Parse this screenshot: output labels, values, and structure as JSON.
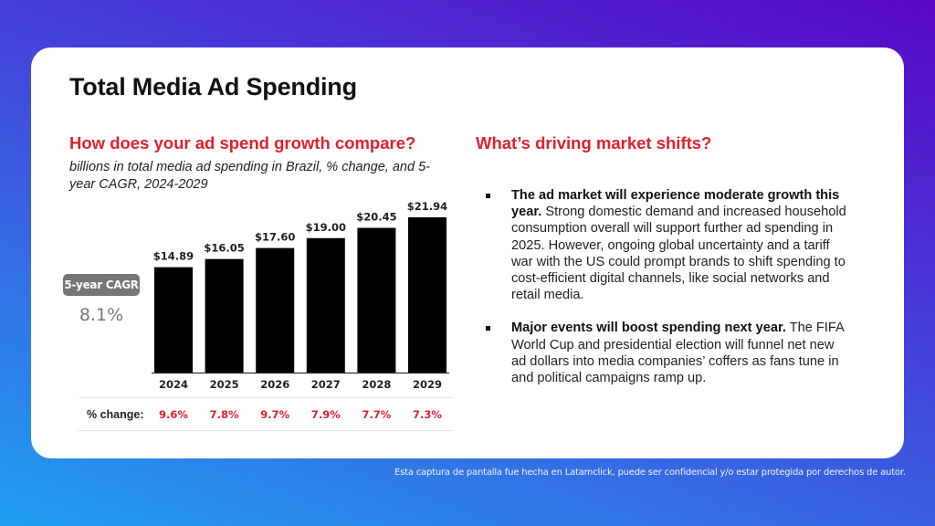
{
  "title": "Total Media Ad Spending",
  "left": {
    "heading": "How does your ad spend growth compare?",
    "subtitle": "billions in total media ad spending in Brazil, % change, and 5-year CAGR, 2024-2029",
    "cagr_badge": "5-year CAGR",
    "cagr_value": "8.1%",
    "pct_change_label": "% change:"
  },
  "right": {
    "heading": "What’s driving market shifts?",
    "bullets": [
      {
        "bold": "The ad market will experience moderate growth this year.",
        "text": " Strong domestic demand and increased household consumption overall will support further ad spending in 2025. However, ongoing global uncertainty and a tariff war with the US could prompt brands to shift spending to cost-efficient digital channels, like social networks and retail media."
      },
      {
        "bold": "Major events will boost spending next year.",
        "text": " The FIFA World Cup and presidential election will funnel net new ad dollars into media companies’ coffers as fans tune in and political campaigns ramp up."
      }
    ]
  },
  "colors": {
    "accent_red": "#e0202e",
    "bar": "#000000",
    "badge_gray": "#767676"
  },
  "chart_data": {
    "type": "bar",
    "title": "billions in total media ad spending in Brazil, % change, and 5-year CAGR, 2024-2029",
    "categories": [
      "2024",
      "2025",
      "2026",
      "2027",
      "2028",
      "2029"
    ],
    "values": [
      14.89,
      16.05,
      17.6,
      19.0,
      20.45,
      21.94
    ],
    "value_labels": [
      "$14.89",
      "$16.05",
      "$17.60",
      "$19.00",
      "$20.45",
      "$21.94"
    ],
    "pct_change": [
      "9.6%",
      "7.8%",
      "9.7%",
      "7.9%",
      "7.7%",
      "7.3%"
    ],
    "cagr": "8.1%",
    "xlabel": "",
    "ylabel": "",
    "grid": false,
    "legend": "none"
  },
  "watermark": "Esta captura de pantalla fue hecha en Latamclick, puede ser confidencial y/o estar protegida por derechos de autor."
}
